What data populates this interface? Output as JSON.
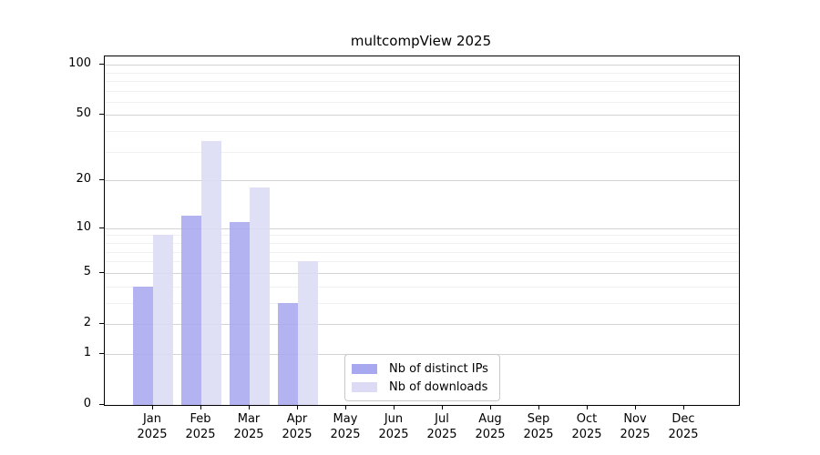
{
  "title": "multcompView 2025",
  "chart_data": {
    "type": "bar",
    "title": "multcompView 2025",
    "categories": [
      "Jan",
      "Feb",
      "Mar",
      "Apr",
      "May",
      "Jun",
      "Jul",
      "Aug",
      "Sep",
      "Oct",
      "Nov",
      "Dec"
    ],
    "year_label": "2025",
    "series": [
      {
        "name": "Nb of distinct IPs",
        "color": "#a8a8f0",
        "values": [
          4,
          12,
          11,
          3,
          0,
          0,
          0,
          0,
          0,
          0,
          0,
          0
        ]
      },
      {
        "name": "Nb of downloads",
        "color": "#dbdbf5",
        "values": [
          9,
          35,
          18,
          6,
          0,
          0,
          0,
          0,
          0,
          0,
          0,
          0
        ]
      }
    ],
    "y_scale": "log10(x+1)",
    "y_ticks": [
      0,
      1,
      2,
      5,
      10,
      20,
      50,
      100
    ],
    "y_minor_ticks": [
      3,
      4,
      6,
      7,
      8,
      9,
      30,
      40,
      60,
      70,
      80,
      90
    ],
    "ylim": [
      0,
      112
    ],
    "grid": true,
    "legend_position": "bottom-center",
    "colors": {
      "major_gridline": "#d4d4d4",
      "minor_gridline": "#f1f1f1",
      "axis": "#000000",
      "legend_border": "#c8c8c8"
    }
  }
}
